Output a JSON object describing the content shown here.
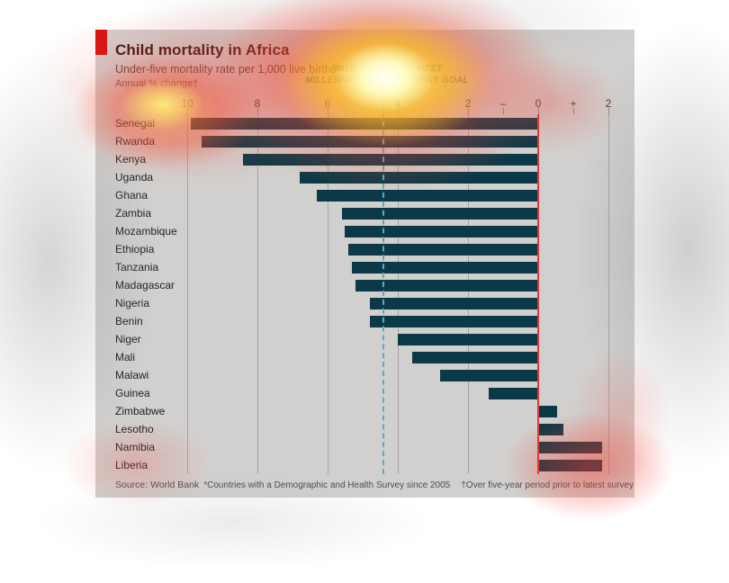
{
  "chart": {
    "title": "Child mortality in Africa",
    "subtitle": "Under-five mortality rate per 1,000 live births*",
    "measure_label": "Annual % change†",
    "annotation_line1": "RATE NEEDED TO MEET",
    "annotation_line2": "MILLENNIUM DEVELOPMENT GOAL",
    "source": "Source: World Bank",
    "footnote1": "*Countries with a Demographic and Health Survey since 2005",
    "footnote2": "†Over five-year period prior to latest survey",
    "accent_color": "#d8140e",
    "card_bg": "#d1d0ce"
  },
  "chart_data": {
    "type": "bar",
    "orientation": "horizontal",
    "title": "Child mortality in Africa",
    "subtitle": "Under-five mortality rate per 1,000 live births*",
    "value_label": "Annual % change†",
    "categories": [
      "Senegal",
      "Rwanda",
      "Kenya",
      "Uganda",
      "Ghana",
      "Zambia",
      "Mozambique",
      "Ethiopia",
      "Tanzania",
      "Madagascar",
      "Nigeria",
      "Benin",
      "Niger",
      "Mali",
      "Malawi",
      "Guinea",
      "Zimbabwe",
      "Lesotho",
      "Namibia",
      "Liberia"
    ],
    "values": [
      -9.9,
      -9.6,
      -8.4,
      -6.8,
      -6.3,
      -5.6,
      -5.5,
      -5.4,
      -5.3,
      -5.2,
      -4.8,
      -4.8,
      -4.0,
      -3.6,
      -2.8,
      -1.4,
      0.5,
      0.7,
      1.8,
      1.8
    ],
    "values_note": "annual % change; negative = decline (bar extends left of 0), positive = increase (bar extends right)",
    "axis_ticks": [
      {
        "label": "10",
        "u": 10,
        "grid": true
      },
      {
        "label": "8",
        "u": 8,
        "grid": true
      },
      {
        "label": "6",
        "u": 6,
        "grid": true
      },
      {
        "label": "4",
        "u": 4,
        "grid": true
      },
      {
        "label": "2",
        "u": 2,
        "grid": true
      },
      {
        "label": "–",
        "u": 1,
        "grid": false
      },
      {
        "label": "0",
        "u": 0,
        "grid": true
      },
      {
        "label": "+",
        "u": -1,
        "grid": false
      },
      {
        "label": "2",
        "u": -2,
        "grid": true
      }
    ],
    "xlim_units": [
      10,
      -2
    ],
    "reference_line_u": 4.4,
    "reference_line_label": "RATE NEEDED TO MEET MILLENNIUM DEVELOPMENT GOAL",
    "bar_color": "#0b3947",
    "zero_line_color": "#e23b2f",
    "reference_line_color": "#5ca8c9",
    "gridline_color": "#a6a5a3",
    "legend": null
  }
}
